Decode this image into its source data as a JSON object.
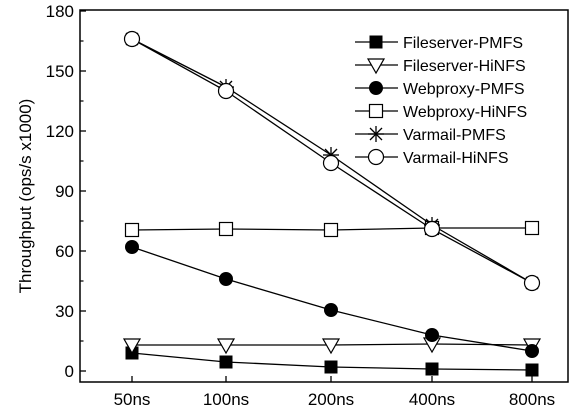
{
  "chart_data": {
    "type": "line",
    "title": "",
    "xlabel": "",
    "ylabel": "Throughput (ops/s  x1000)",
    "categories": [
      "50ns",
      "100ns",
      "200ns",
      "400ns",
      "800ns"
    ],
    "ylim": [
      0,
      180
    ],
    "yticks": [
      0,
      30,
      60,
      90,
      120,
      150,
      180
    ],
    "grid": false,
    "legend_position": "top-right",
    "series": [
      {
        "name": "Fileserver-PMFS",
        "marker": "filled-square",
        "values": [
          9,
          4.5,
          2,
          1,
          0.5
        ]
      },
      {
        "name": "Fileserver-HiNFS",
        "marker": "open-triangle-down",
        "values": [
          13,
          13,
          13,
          13.5,
          13
        ]
      },
      {
        "name": "Webproxy-PMFS",
        "marker": "filled-circle",
        "values": [
          62,
          46,
          30.5,
          18,
          10
        ]
      },
      {
        "name": "Webproxy-HiNFS",
        "marker": "open-square",
        "values": [
          70.5,
          71,
          70.5,
          71.5,
          71.5
        ]
      },
      {
        "name": "Varmail-PMFS",
        "marker": "asterisk",
        "values": [
          166,
          142,
          108,
          73,
          44
        ]
      },
      {
        "name": "Varmail-HiNFS",
        "marker": "open-circle",
        "values": [
          166,
          140,
          104,
          71,
          44
        ]
      }
    ]
  }
}
